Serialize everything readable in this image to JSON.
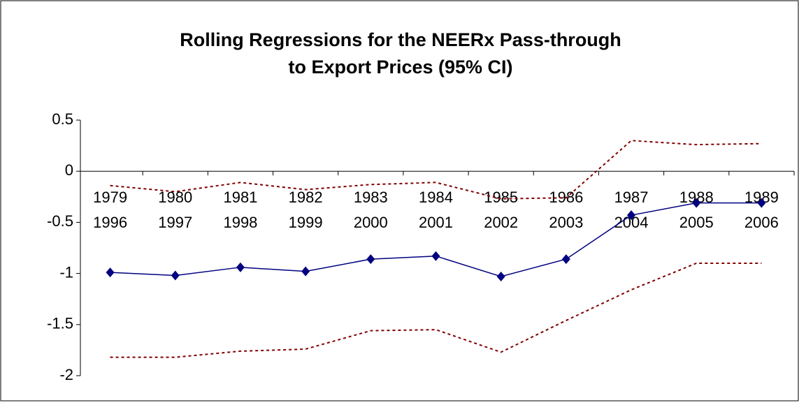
{
  "chart_data": {
    "type": "line",
    "title": [
      "Rolling Regressions for the NEERx Pass-through",
      "to Export Prices (95% CI)"
    ],
    "categories": [
      [
        "1979",
        "1996"
      ],
      [
        "1980",
        "1997"
      ],
      [
        "1981",
        "1998"
      ],
      [
        "1982",
        "1999"
      ],
      [
        "1983",
        "2000"
      ],
      [
        "1984",
        "2001"
      ],
      [
        "1985",
        "2002"
      ],
      [
        "1986",
        "2003"
      ],
      [
        "1987",
        "2004"
      ],
      [
        "1988",
        "2005"
      ],
      [
        "1989",
        "2006"
      ]
    ],
    "series": [
      {
        "color": "#000080",
        "marker": "diamond",
        "dashed": false,
        "values": [
          -0.99,
          -1.02,
          -0.94,
          -0.98,
          -0.86,
          -0.83,
          -1.03,
          -0.86,
          -0.43,
          -0.31,
          -0.31
        ]
      },
      {
        "color": "#800000",
        "marker": "none",
        "dashed": true,
        "values": [
          -0.14,
          -0.2,
          -0.11,
          -0.18,
          -0.13,
          -0.11,
          -0.27,
          -0.26,
          0.3,
          0.26,
          0.27
        ]
      },
      {
        "color": "#800000",
        "marker": "none",
        "dashed": true,
        "values": [
          -1.82,
          -1.82,
          -1.76,
          -1.74,
          -1.56,
          -1.55,
          -1.77,
          -1.46,
          -1.16,
          -0.9,
          -0.9
        ]
      }
    ],
    "ylim": [
      -2,
      0.5
    ],
    "yticks": [
      0.5,
      0,
      -0.5,
      -1,
      -1.5,
      -2
    ],
    "grid": false
  }
}
